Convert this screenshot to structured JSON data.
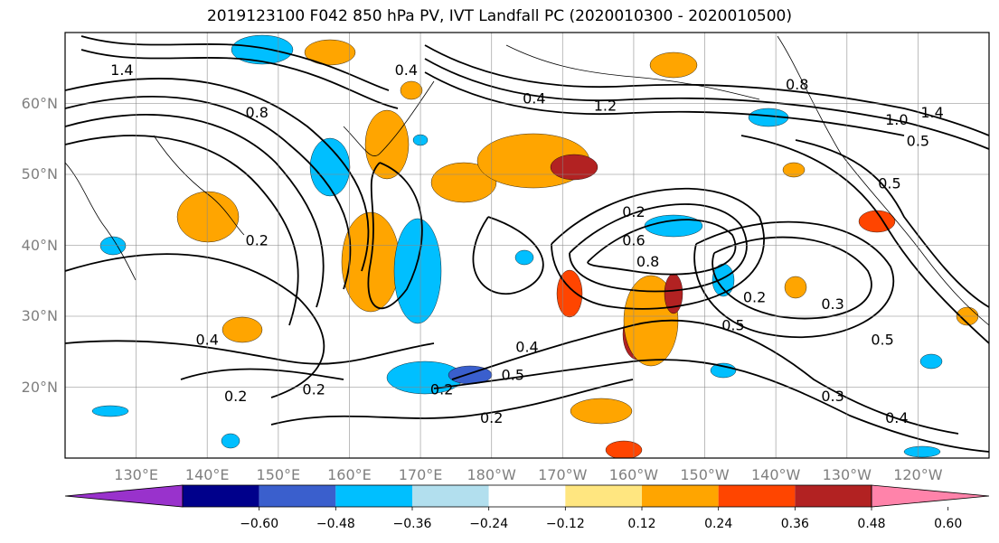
{
  "title": "2019123100 F042 850 hPa PV, IVT Landfall PC (2020010300 - 2020010500)",
  "map": {
    "lon_range": [
      120,
      250
    ],
    "lat_range": [
      10,
      70
    ],
    "grid": true,
    "lat_ticks": [
      {
        "lat": 60,
        "label": "60°N"
      },
      {
        "lat": 50,
        "label": "50°N"
      },
      {
        "lat": 40,
        "label": "40°N"
      },
      {
        "lat": 30,
        "label": "30°N"
      },
      {
        "lat": 20,
        "label": "20°N"
      }
    ],
    "lon_ticks": [
      {
        "lon": 130,
        "label": "130°E"
      },
      {
        "lon": 140,
        "label": "140°E"
      },
      {
        "lon": 150,
        "label": "150°E"
      },
      {
        "lon": 160,
        "label": "160°E"
      },
      {
        "lon": 170,
        "label": "170°E"
      },
      {
        "lon": 180,
        "label": "180°W"
      },
      {
        "lon": 190,
        "label": "170°W"
      },
      {
        "lon": 200,
        "label": "160°W"
      },
      {
        "lon": 210,
        "label": "150°W"
      },
      {
        "lon": 220,
        "label": "140°W"
      },
      {
        "lon": 230,
        "label": "130°W"
      },
      {
        "lon": 240,
        "label": "120°W"
      }
    ],
    "contour_labels": [
      {
        "text": "1.4",
        "lon": 128,
        "lat": 64
      },
      {
        "text": "0.8",
        "lon": 147,
        "lat": 58
      },
      {
        "text": "0.4",
        "lon": 168,
        "lat": 64
      },
      {
        "text": "0.4",
        "lon": 186,
        "lat": 60
      },
      {
        "text": "1.2",
        "lon": 196,
        "lat": 59
      },
      {
        "text": "0.8",
        "lon": 223,
        "lat": 62
      },
      {
        "text": "1.4",
        "lon": 242,
        "lat": 58
      },
      {
        "text": "1.0",
        "lon": 237,
        "lat": 57
      },
      {
        "text": "0.5",
        "lon": 240,
        "lat": 54
      },
      {
        "text": "0.5",
        "lon": 236,
        "lat": 48
      },
      {
        "text": "0.2",
        "lon": 147,
        "lat": 40
      },
      {
        "text": "0.2",
        "lon": 200,
        "lat": 44
      },
      {
        "text": "0.6",
        "lon": 200,
        "lat": 40
      },
      {
        "text": "0.8",
        "lon": 202,
        "lat": 37
      },
      {
        "text": "0.2",
        "lon": 217,
        "lat": 32
      },
      {
        "text": "0.5",
        "lon": 214,
        "lat": 28
      },
      {
        "text": "0.3",
        "lon": 228,
        "lat": 31
      },
      {
        "text": "0.5",
        "lon": 235,
        "lat": 26
      },
      {
        "text": "0.4",
        "lon": 140,
        "lat": 26
      },
      {
        "text": "0.4",
        "lon": 185,
        "lat": 25
      },
      {
        "text": "0.5",
        "lon": 183,
        "lat": 21
      },
      {
        "text": "0.2",
        "lon": 144,
        "lat": 18
      },
      {
        "text": "0.2",
        "lon": 155,
        "lat": 19
      },
      {
        "text": "0.2",
        "lon": 173,
        "lat": 19
      },
      {
        "text": "0.2",
        "lon": 180,
        "lat": 15
      },
      {
        "text": "0.3",
        "lon": 228,
        "lat": 18
      },
      {
        "text": "0.4",
        "lon": 237,
        "lat": 15
      }
    ],
    "shading_colors": {
      "neg4": "#9932cc",
      "neg3": "#00008b",
      "neg2": "#3a5fcd",
      "neg1": "#00bfff",
      "neg0": "#b2dfee",
      "pos0": "#ffe680",
      "pos1": "#ffa500",
      "pos2": "#ff4500",
      "pos3": "#b22222",
      "pos4": "#ff83aa"
    }
  },
  "colorbar": {
    "colors": [
      "#9932cc",
      "#00008b",
      "#3a5fcd",
      "#00bfff",
      "#b2dfee",
      "#ffffff",
      "#ffe680",
      "#ffa500",
      "#ff4500",
      "#b22222",
      "#ff83aa"
    ],
    "tick_labels": [
      "−0.60",
      "−0.48",
      "−0.36",
      "−0.24",
      "−0.12",
      "0.12",
      "0.24",
      "0.36",
      "0.48",
      "0.60"
    ]
  }
}
